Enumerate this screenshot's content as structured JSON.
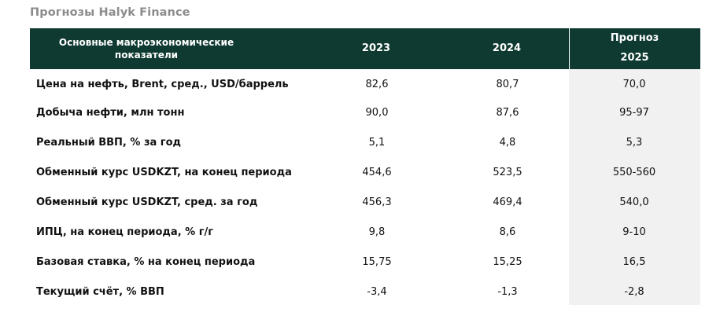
{
  "title": "Прогнозы Halyk Finance",
  "header": {
    "indicator_line1": "Основные макроэкономические",
    "indicator_line2": "показатели",
    "col_2023": "2023",
    "col_2024": "2024",
    "forecast_line1": "Прогноз",
    "forecast_line2": "2025"
  },
  "rows": [
    {
      "label": "Цена на нефть, Brent, сред., USD/баррель",
      "v2023": "82,6",
      "v2024": "80,7",
      "v2025": "70,0"
    },
    {
      "label": "Добыча нефти, млн тонн",
      "v2023": "90,0",
      "v2024": "87,6",
      "v2025": "95-97"
    },
    {
      "label": "Реальный ВВП, % за год",
      "v2023": "5,1",
      "v2024": "4,8",
      "v2025": "5,3"
    },
    {
      "label": "Обменный курс USDKZT, на конец периода",
      "v2023": "454,6",
      "v2024": "523,5",
      "v2025": "550-560"
    },
    {
      "label": "Обменный курс USDKZT, сред. за год",
      "v2023": "456,3",
      "v2024": "469,4",
      "v2025": "540,0"
    },
    {
      "label": "ИПЦ, на конец периода, % г/г",
      "v2023": "9,8",
      "v2024": "8,6",
      "v2025": "9-10"
    },
    {
      "label": "Базовая ставка, % на конец периода",
      "v2023": "15,75",
      "v2024": "15,25",
      "v2025": "16,5"
    },
    {
      "label": "Текущий счёт, % ВВП",
      "v2023": "-3,4",
      "v2024": "-1,3",
      "v2025": "-2,8"
    }
  ],
  "colors": {
    "header_bg": "#0f3a31",
    "header_text": "#ffffff",
    "forecast_column_bg": "#f1f1f1",
    "title_text": "#8c8c8c"
  }
}
